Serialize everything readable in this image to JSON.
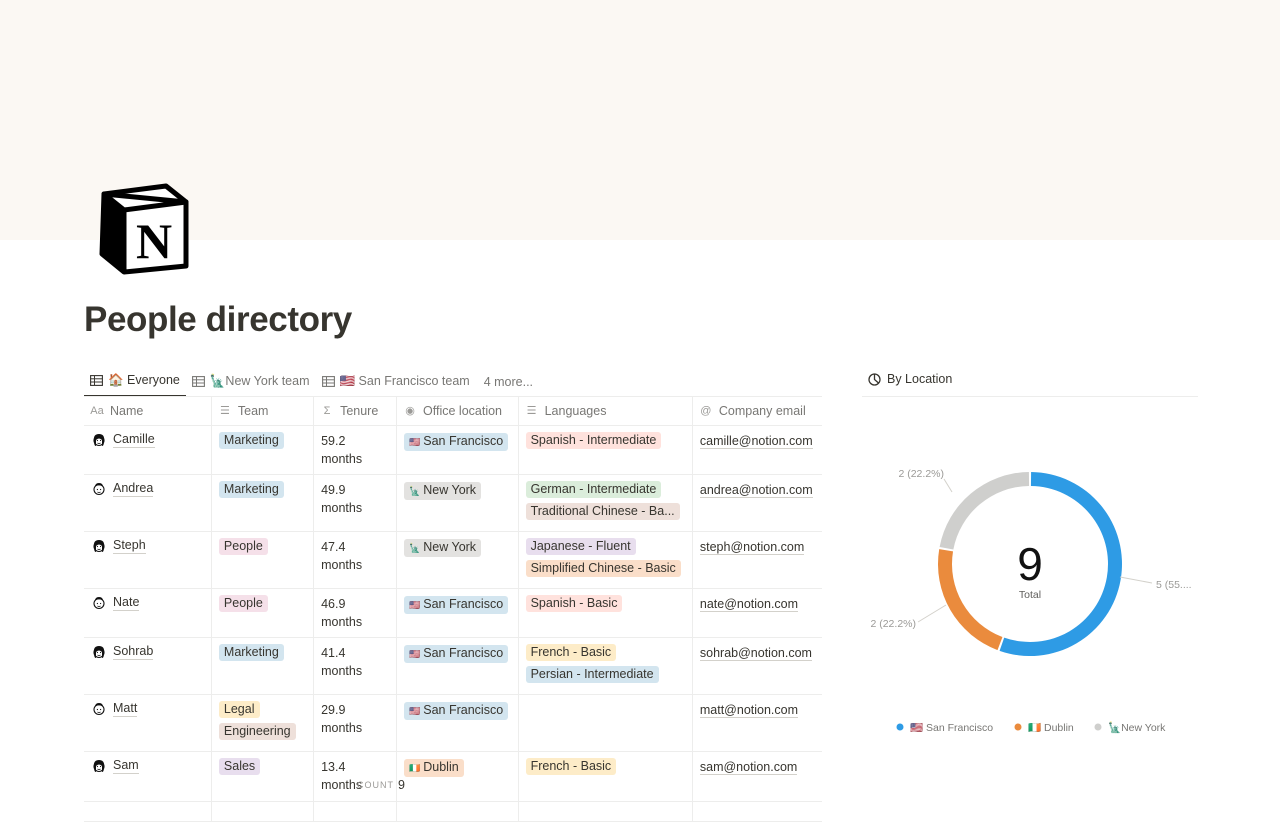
{
  "page": {
    "title": "People directory"
  },
  "tabs": [
    {
      "label": "🏠 Everyone",
      "active": true
    },
    {
      "label": "🗽New York team",
      "active": false
    },
    {
      "label": "🇺🇸 San Francisco team",
      "active": false
    }
  ],
  "tabs_more": "4 more...",
  "table": {
    "headers": {
      "name": "Name",
      "team": "Team",
      "tenure": "Tenure",
      "office": "Office location",
      "languages": "Languages",
      "email": "Company email"
    },
    "rows": [
      {
        "name": "Camille",
        "team": [
          "Marketing"
        ],
        "tenure": "59.2 months",
        "office": "San Francisco",
        "languages": [
          "Spanish - Intermediate"
        ],
        "email": "camille@notion.com"
      },
      {
        "name": "Andrea",
        "team": [
          "Marketing"
        ],
        "tenure": "49.9 months",
        "office": "New York",
        "languages": [
          "German - Intermediate",
          "Traditional Chinese - Ba..."
        ],
        "email": "andrea@notion.com"
      },
      {
        "name": "Steph",
        "team": [
          "People"
        ],
        "tenure": "47.4 months",
        "office": "New York",
        "languages": [
          "Japanese - Fluent",
          "Simplified Chinese - Basic"
        ],
        "email": "steph@notion.com"
      },
      {
        "name": "Nate",
        "team": [
          "People"
        ],
        "tenure": "46.9 months",
        "office": "San Francisco",
        "languages": [
          "Spanish - Basic"
        ],
        "email": "nate@notion.com"
      },
      {
        "name": "Sohrab",
        "team": [
          "Marketing"
        ],
        "tenure": "41.4 months",
        "office": "San Francisco",
        "languages": [
          "French - Basic",
          "Persian - Intermediate"
        ],
        "email": "sohrab@notion.com"
      },
      {
        "name": "Matt",
        "team": [
          "Legal",
          "Engineering"
        ],
        "tenure": "29.9 months",
        "office": "San Francisco",
        "languages": [],
        "email": "matt@notion.com"
      },
      {
        "name": "Sam",
        "team": [
          "Sales"
        ],
        "tenure": "13.4 months",
        "office": "Dublin",
        "languages": [
          "French - Basic"
        ],
        "email": "sam@notion.com"
      }
    ]
  },
  "count": {
    "label": "COUNT",
    "value": "9"
  },
  "chart_panel": {
    "title": "By Location"
  },
  "chart_data": {
    "type": "pie",
    "center_value": "9",
    "center_label": "Total",
    "slices": [
      {
        "label": "🇺🇸 San Francisco",
        "value": 5,
        "callout": "5 (55....",
        "color": "#2e9be5"
      },
      {
        "label": "🇮🇪 Dublin",
        "value": 2,
        "callout": "2 (22.2%)",
        "color": "#ea8b3d"
      },
      {
        "label": "🗽New York",
        "value": 2,
        "callout": "2 (22.2%)",
        "color": "#cfcfcd"
      }
    ]
  },
  "colors": {
    "Marketing": "blue",
    "People": "pink",
    "Legal": "yellow",
    "Engineering": "brown",
    "Sales": "purple",
    "San Francisco": "blue",
    "New York": "gray",
    "Dublin": "orange",
    "Spanish - Intermediate": "red",
    "German - Intermediate": "green",
    "Traditional Chinese - Ba...": "brown",
    "Japanese - Fluent": "purple",
    "Simplified Chinese - Basic": "orange",
    "Spanish - Basic": "red",
    "French - Basic": "yellow",
    "Persian - Intermediate": "blue"
  },
  "office_flags": {
    "San Francisco": "🇺🇸",
    "New York": "🗽",
    "Dublin": "🇮🇪"
  }
}
